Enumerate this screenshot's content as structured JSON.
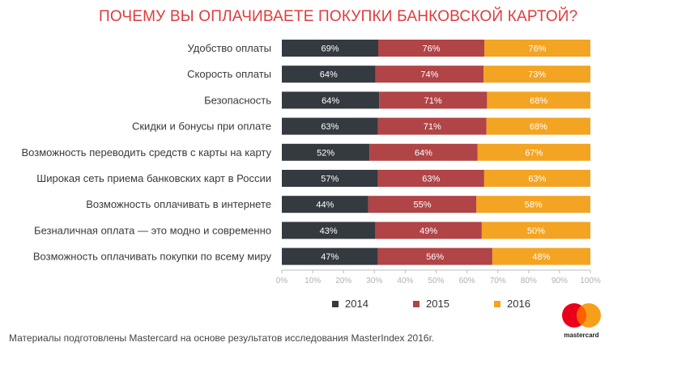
{
  "title": "ПОЧЕМУ ВЫ ОПЛАЧИВАЕТЕ ПОКУПКИ БАНКОВСКОЙ КАРТОЙ?",
  "footer": "Материалы подготовлены Mastercard на основе результатов исследования MasterIndex 2016г.",
  "brand": {
    "logo_text": "mastercard",
    "icon": "mastercard-logo"
  },
  "colors": {
    "2014": "#343a40",
    "2015": "#b04446",
    "2016": "#f3a423",
    "axis": "#bcbcbc"
  },
  "chart_data": {
    "type": "bar",
    "orientation": "horizontal",
    "stacked": "percent",
    "title": "ПОЧЕМУ ВЫ ОПЛАЧИВАЕТЕ ПОКУПКИ БАНКОВСКОЙ КАРТОЙ?",
    "categories": [
      "Удобство оплаты",
      "Скорость оплаты",
      "Безопасность",
      "Скидки и бонусы при оплате",
      "Возможность переводить средств с карты на карту",
      "Широкая сеть приема банковских карт в России",
      "Возможность оплачивать в интернете",
      "Безналичная оплата — это модно и современно",
      "Возможность оплачивать покупки по всему миру"
    ],
    "series": [
      {
        "name": "2014",
        "values": [
          69,
          64,
          64,
          63,
          52,
          57,
          44,
          43,
          47
        ],
        "labels": [
          "69%",
          "64%",
          "64%",
          "63%",
          "52%",
          "57%",
          "44%",
          "43%",
          "47%"
        ]
      },
      {
        "name": "2015",
        "values": [
          76,
          74,
          71,
          71,
          64,
          63,
          55,
          49,
          56
        ],
        "labels": [
          "76%",
          "74%",
          "71%",
          "71%",
          "64%",
          "63%",
          "55%",
          "49%",
          "56%"
        ]
      },
      {
        "name": "2016",
        "values": [
          76,
          73,
          68,
          68,
          67,
          63,
          58,
          50,
          48
        ],
        "labels": [
          "76%",
          "73%",
          "68%",
          "68%",
          "67%",
          "63%",
          "58%",
          "50%",
          "48%"
        ]
      }
    ],
    "xticks": [
      "0%",
      "10%",
      "20%",
      "30%",
      "40%",
      "50%",
      "60%",
      "70%",
      "80%",
      "90%",
      "100%"
    ],
    "xlim": [
      0,
      100
    ],
    "grid": false,
    "legend_position": "bottom"
  }
}
